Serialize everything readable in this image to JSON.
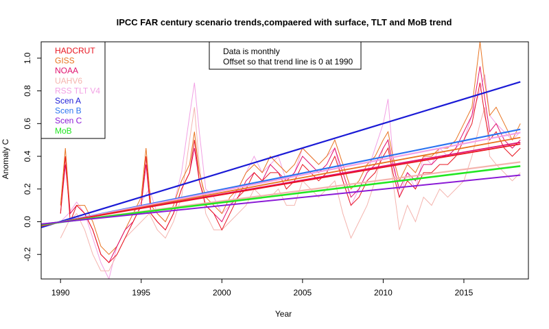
{
  "chart_data": {
    "type": "line",
    "title": "IPCC FAR century scenario trends,compaered with surface, TLT and MoB trend",
    "xlabel": "Year",
    "ylabel": "Anomaly C",
    "xlim": [
      1988.8,
      2019.0
    ],
    "ylim": [
      -0.35,
      1.1
    ],
    "x_ticks": [
      "1990",
      "1995",
      "2000",
      "2005",
      "2010",
      "2015"
    ],
    "x_tick_values": [
      1990,
      1995,
      2000,
      2005,
      2010,
      2015
    ],
    "y_ticks": [
      "-0.2",
      "0.0",
      "0.2",
      "0.4",
      "0.6",
      "0.8",
      "1.0"
    ],
    "y_tick_values": [
      -0.2,
      0.0,
      0.2,
      0.4,
      0.6,
      0.8,
      1.0
    ],
    "annotation": [
      "Data is monthly",
      "Offset so that trend line is 0 at 1990"
    ],
    "legend": [
      {
        "label": "HADCRUT",
        "color": "#e8141f"
      },
      {
        "label": "GISS",
        "color": "#e8731f"
      },
      {
        "label": "NOAA",
        "color": "#e0106e"
      },
      {
        "label": "UAHV6",
        "color": "#f4b4ae"
      },
      {
        "label": "RSS TLT V4",
        "color": "#f2a0e4"
      },
      {
        "label": "Scen A",
        "color": "#1a1ad6"
      },
      {
        "label": "Scen B",
        "color": "#2a73f0"
      },
      {
        "label": "Scen C",
        "color": "#8a1ad6"
      },
      {
        "label": "MoB",
        "color": "#22e622"
      }
    ],
    "trend_lines": [
      {
        "name": "Scen A",
        "color": "#1a1ad6",
        "x": [
          1988.8,
          2018.5
        ],
        "y": [
          -0.035,
          0.855
        ],
        "width": 2.2
      },
      {
        "name": "Scen B",
        "color": "#2a73f0",
        "x": [
          1988.8,
          2018.5
        ],
        "y": [
          -0.025,
          0.565
        ],
        "width": 2.2
      },
      {
        "name": "RSS TLT V4",
        "color": "#f2a0e4",
        "x": [
          1988.8,
          2018.5
        ],
        "y": [
          -0.025,
          0.545
        ],
        "width": 2.2
      },
      {
        "name": "GISS",
        "color": "#e8731f",
        "x": [
          1988.8,
          2018.5
        ],
        "y": [
          -0.025,
          0.515
        ],
        "width": 1.8
      },
      {
        "name": "NOAA",
        "color": "#e0106e",
        "x": [
          1988.8,
          2018.5
        ],
        "y": [
          -0.022,
          0.485
        ],
        "width": 1.8
      },
      {
        "name": "HADCRUT",
        "color": "#e8141f",
        "x": [
          1988.8,
          2018.5
        ],
        "y": [
          -0.022,
          0.475
        ],
        "width": 1.8
      },
      {
        "name": "UAHV6",
        "color": "#f4b4ae",
        "x": [
          1988.8,
          2018.5
        ],
        "y": [
          -0.018,
          0.365
        ],
        "width": 2.2
      },
      {
        "name": "MoB",
        "color": "#22e622",
        "x": [
          1988.8,
          2018.5
        ],
        "y": [
          -0.017,
          0.34
        ],
        "width": 2.6
      },
      {
        "name": "Scen C",
        "color": "#8a1ad6",
        "x": [
          1988.8,
          2018.5
        ],
        "y": [
          -0.014,
          0.285
        ],
        "width": 2.0
      }
    ],
    "series": [
      {
        "name": "RSS TLT V4",
        "color": "#f2a0e4",
        "x": [
          1990.0,
          1990.5,
          1991.0,
          1991.5,
          1992.0,
          1992.5,
          1993.0,
          1993.5,
          1994.0,
          1994.5,
          1995.0,
          1995.5,
          1996.0,
          1996.5,
          1997.0,
          1997.5,
          1998.0,
          1998.3,
          1998.6,
          1999.0,
          1999.5,
          2000.0,
          2000.5,
          2001.0,
          2001.5,
          2002.0,
          2002.5,
          2003.0,
          2003.5,
          2004.0,
          2004.5,
          2005.0,
          2005.5,
          2006.0,
          2006.5,
          2007.0,
          2007.5,
          2008.0,
          2008.5,
          2009.0,
          2009.5,
          2010.0,
          2010.3,
          2010.6,
          2011.0,
          2011.5,
          2012.0,
          2012.5,
          2013.0,
          2013.5,
          2014.0,
          2014.5,
          2015.0,
          2015.5,
          2016.0,
          2016.3,
          2016.6,
          2017.0,
          2017.5,
          2018.0,
          2018.5
        ],
        "y": [
          0.0,
          0.05,
          0.12,
          0.05,
          -0.1,
          -0.25,
          -0.35,
          -0.15,
          -0.05,
          0.05,
          0.12,
          0.2,
          0.05,
          0.0,
          0.1,
          0.3,
          0.65,
          0.85,
          0.55,
          0.2,
          0.15,
          0.05,
          0.1,
          0.2,
          0.3,
          0.4,
          0.3,
          0.35,
          0.4,
          0.25,
          0.3,
          0.45,
          0.4,
          0.35,
          0.4,
          0.45,
          0.25,
          0.1,
          0.2,
          0.3,
          0.45,
          0.6,
          0.75,
          0.4,
          0.15,
          0.3,
          0.2,
          0.4,
          0.35,
          0.45,
          0.4,
          0.45,
          0.5,
          0.65,
          0.8,
          0.9,
          0.65,
          0.6,
          0.55,
          0.5,
          0.55
        ]
      },
      {
        "name": "UAHV6",
        "color": "#f4b4ae",
        "x": [
          1990.0,
          1990.5,
          1991.0,
          1991.5,
          1992.0,
          1992.5,
          1993.0,
          1993.5,
          1994.0,
          1994.5,
          1995.0,
          1995.5,
          1996.0,
          1996.5,
          1997.0,
          1997.5,
          1998.0,
          1998.3,
          1998.6,
          1999.0,
          1999.5,
          2000.0,
          2000.5,
          2001.0,
          2001.5,
          2002.0,
          2002.5,
          2003.0,
          2003.5,
          2004.0,
          2004.5,
          2005.0,
          2005.5,
          2006.0,
          2006.5,
          2007.0,
          2007.5,
          2008.0,
          2008.5,
          2009.0,
          2009.5,
          2010.0,
          2010.3,
          2010.6,
          2011.0,
          2011.5,
          2012.0,
          2012.5,
          2013.0,
          2013.5,
          2014.0,
          2014.5,
          2015.0,
          2015.5,
          2016.0,
          2016.3,
          2016.6,
          2017.0,
          2017.5,
          2018.0,
          2018.5
        ],
        "y": [
          -0.1,
          0.0,
          0.05,
          -0.05,
          -0.2,
          -0.3,
          -0.3,
          -0.2,
          -0.1,
          -0.05,
          0.0,
          0.05,
          -0.05,
          -0.1,
          0.0,
          0.15,
          0.5,
          0.7,
          0.35,
          0.05,
          -0.05,
          -0.05,
          0.0,
          0.05,
          0.1,
          0.2,
          0.15,
          0.15,
          0.2,
          0.1,
          0.1,
          0.25,
          0.2,
          0.15,
          0.2,
          0.25,
          0.05,
          -0.1,
          0.0,
          0.1,
          0.25,
          0.45,
          0.5,
          0.25,
          -0.05,
          0.1,
          0.0,
          0.15,
          0.1,
          0.2,
          0.15,
          0.2,
          0.25,
          0.4,
          0.6,
          0.7,
          0.4,
          0.35,
          0.3,
          0.25,
          0.3
        ]
      },
      {
        "name": "GISS",
        "color": "#e8731f",
        "x": [
          1990.0,
          1990.3,
          1990.6,
          1991.0,
          1991.5,
          1992.0,
          1992.5,
          1993.0,
          1993.5,
          1994.0,
          1994.5,
          1995.0,
          1995.3,
          1995.6,
          1996.0,
          1996.5,
          1997.0,
          1997.5,
          1998.0,
          1998.3,
          1998.6,
          1999.0,
          1999.5,
          2000.0,
          2000.5,
          2001.0,
          2001.5,
          2002.0,
          2002.5,
          2003.0,
          2003.5,
          2004.0,
          2004.5,
          2005.0,
          2005.5,
          2006.0,
          2006.5,
          2007.0,
          2007.5,
          2008.0,
          2008.5,
          2009.0,
          2009.5,
          2010.0,
          2010.3,
          2010.6,
          2011.0,
          2011.5,
          2012.0,
          2012.5,
          2013.0,
          2013.5,
          2014.0,
          2014.5,
          2015.0,
          2015.5,
          2016.0,
          2016.3,
          2016.6,
          2017.0,
          2017.5,
          2018.0,
          2018.5
        ],
        "y": [
          0.1,
          0.45,
          0.05,
          0.1,
          0.1,
          0.0,
          -0.15,
          -0.2,
          -0.15,
          -0.05,
          0.05,
          0.15,
          0.45,
          0.1,
          0.05,
          0.0,
          0.1,
          0.25,
          0.35,
          0.55,
          0.3,
          0.15,
          0.1,
          0.05,
          0.15,
          0.2,
          0.3,
          0.35,
          0.3,
          0.4,
          0.35,
          0.3,
          0.35,
          0.45,
          0.4,
          0.35,
          0.4,
          0.5,
          0.35,
          0.2,
          0.25,
          0.35,
          0.4,
          0.5,
          0.55,
          0.4,
          0.25,
          0.35,
          0.3,
          0.4,
          0.4,
          0.45,
          0.45,
          0.5,
          0.6,
          0.7,
          1.1,
          0.85,
          0.65,
          0.7,
          0.6,
          0.5,
          0.6
        ]
      },
      {
        "name": "NOAA",
        "color": "#e0106e",
        "x": [
          1990.0,
          1990.3,
          1990.6,
          1991.0,
          1991.5,
          1992.0,
          1992.5,
          1993.0,
          1993.5,
          1994.0,
          1994.5,
          1995.0,
          1995.3,
          1995.6,
          1996.0,
          1996.5,
          1997.0,
          1997.5,
          1998.0,
          1998.3,
          1998.6,
          1999.0,
          1999.5,
          2000.0,
          2000.5,
          2001.0,
          2001.5,
          2002.0,
          2002.5,
          2003.0,
          2003.5,
          2004.0,
          2004.5,
          2005.0,
          2005.5,
          2006.0,
          2006.5,
          2007.0,
          2007.5,
          2008.0,
          2008.5,
          2009.0,
          2009.5,
          2010.0,
          2010.3,
          2010.6,
          2011.0,
          2011.5,
          2012.0,
          2012.5,
          2013.0,
          2013.5,
          2014.0,
          2014.5,
          2015.0,
          2015.5,
          2016.0,
          2016.3,
          2016.6,
          2017.0,
          2017.5,
          2018.0,
          2018.5
        ],
        "y": [
          0.05,
          0.35,
          0.05,
          0.1,
          0.05,
          -0.05,
          -0.2,
          -0.25,
          -0.15,
          -0.05,
          0.0,
          0.1,
          0.35,
          0.05,
          0.0,
          -0.05,
          0.05,
          0.2,
          0.3,
          0.45,
          0.25,
          0.1,
          0.05,
          0.0,
          0.1,
          0.15,
          0.25,
          0.3,
          0.25,
          0.35,
          0.3,
          0.25,
          0.3,
          0.4,
          0.35,
          0.3,
          0.35,
          0.45,
          0.3,
          0.15,
          0.2,
          0.3,
          0.35,
          0.45,
          0.5,
          0.35,
          0.2,
          0.3,
          0.25,
          0.35,
          0.35,
          0.4,
          0.4,
          0.45,
          0.55,
          0.65,
          0.95,
          0.75,
          0.55,
          0.6,
          0.5,
          0.45,
          0.5
        ]
      },
      {
        "name": "HADCRUT",
        "color": "#e8141f",
        "x": [
          1990.0,
          1990.3,
          1990.6,
          1991.0,
          1991.5,
          1992.0,
          1992.5,
          1993.0,
          1993.5,
          1994.0,
          1994.5,
          1995.0,
          1995.3,
          1995.6,
          1996.0,
          1996.5,
          1997.0,
          1997.5,
          1998.0,
          1998.3,
          1998.6,
          1999.0,
          1999.5,
          2000.0,
          2000.5,
          2001.0,
          2001.5,
          2002.0,
          2002.5,
          2003.0,
          2003.5,
          2004.0,
          2004.5,
          2005.0,
          2005.5,
          2006.0,
          2006.5,
          2007.0,
          2007.5,
          2008.0,
          2008.5,
          2009.0,
          2009.5,
          2010.0,
          2010.3,
          2010.6,
          2011.0,
          2011.5,
          2012.0,
          2012.5,
          2013.0,
          2013.5,
          2014.0,
          2014.5,
          2015.0,
          2015.5,
          2016.0,
          2016.3,
          2016.6,
          2017.0,
          2017.5,
          2018.0,
          2018.5
        ],
        "y": [
          0.05,
          0.4,
          0.0,
          0.1,
          0.05,
          -0.05,
          -0.2,
          -0.25,
          -0.2,
          -0.1,
          0.0,
          0.1,
          0.4,
          0.05,
          0.0,
          -0.05,
          0.05,
          0.2,
          0.3,
          0.5,
          0.25,
          0.1,
          0.05,
          -0.05,
          0.05,
          0.15,
          0.2,
          0.3,
          0.25,
          0.3,
          0.3,
          0.2,
          0.25,
          0.35,
          0.3,
          0.25,
          0.3,
          0.4,
          0.25,
          0.1,
          0.15,
          0.25,
          0.3,
          0.4,
          0.45,
          0.3,
          0.15,
          0.25,
          0.2,
          0.3,
          0.3,
          0.35,
          0.35,
          0.4,
          0.5,
          0.6,
          0.85,
          0.65,
          0.5,
          0.55,
          0.45,
          0.4,
          0.45
        ]
      }
    ]
  }
}
